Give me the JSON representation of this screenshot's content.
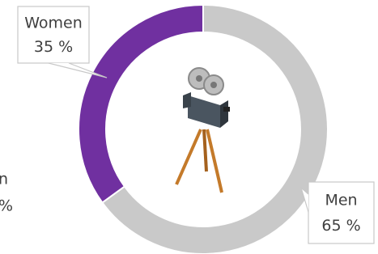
{
  "chart_data": {
    "type": "donut",
    "categories": [
      "Women",
      "Men"
    ],
    "values": [
      35,
      65
    ],
    "value_labels": [
      "35 %",
      "65 %"
    ],
    "colors": [
      "#7030a0",
      "#c9c9c9"
    ]
  },
  "edge_label": {
    "lines": [
      "n",
      "%"
    ]
  }
}
